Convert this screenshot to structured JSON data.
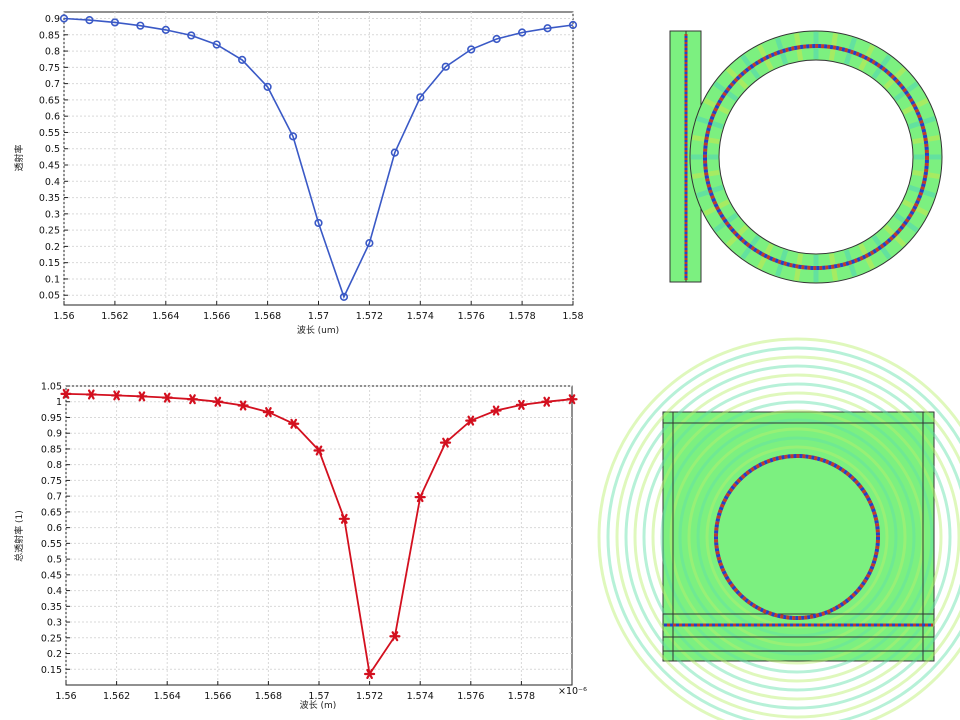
{
  "colors": {
    "series_top": "#3a59c6",
    "series_bottom": "#d3101f",
    "grid": "#d9d9d9",
    "field_bg": "#7cf080",
    "field_stroke": "#333333"
  },
  "chart_data": [
    {
      "type": "line",
      "marker": "circle",
      "xlabel": "波长 (um)",
      "ylabel": "透射率",
      "xlim": [
        1.56,
        1.58
      ],
      "ylim": [
        0.02,
        0.92
      ],
      "x_ticks": [
        "1.56",
        "1.562",
        "1.564",
        "1.566",
        "1.568",
        "1.57",
        "1.572",
        "1.574",
        "1.576",
        "1.578",
        "1.58"
      ],
      "y_ticks": [
        "0.05",
        "0.1",
        "0.15",
        "0.2",
        "0.25",
        "0.3",
        "0.35",
        "0.4",
        "0.45",
        "0.5",
        "0.55",
        "0.6",
        "0.65",
        "0.7",
        "0.75",
        "0.8",
        "0.85",
        "0.9"
      ],
      "grid": true,
      "x": [
        1.56,
        1.561,
        1.562,
        1.563,
        1.564,
        1.565,
        1.566,
        1.567,
        1.568,
        1.569,
        1.57,
        1.571,
        1.572,
        1.573,
        1.574,
        1.575,
        1.576,
        1.577,
        1.578,
        1.579,
        1.58
      ],
      "y": [
        0.9,
        0.895,
        0.888,
        0.878,
        0.865,
        0.848,
        0.82,
        0.773,
        0.69,
        0.538,
        0.272,
        0.045,
        0.21,
        0.488,
        0.658,
        0.752,
        0.805,
        0.837,
        0.857,
        0.87,
        0.88
      ]
    },
    {
      "type": "line",
      "marker": "asterisk",
      "xlabel": "波长 (m)",
      "ylabel": "总透射率 (1)",
      "x_multiplier": "×10⁻⁶",
      "xlim": [
        1.56,
        1.58
      ],
      "ylim": [
        0.1,
        1.05
      ],
      "x_ticks": [
        "1.56",
        "1.562",
        "1.564",
        "1.566",
        "1.568",
        "1.57",
        "1.572",
        "1.574",
        "1.576",
        "1.578"
      ],
      "y_ticks": [
        "0.15",
        "0.2",
        "0.25",
        "0.3",
        "0.35",
        "0.4",
        "0.45",
        "0.5",
        "0.55",
        "0.6",
        "0.65",
        "0.7",
        "0.75",
        "0.8",
        "0.85",
        "0.9",
        "0.95",
        "1",
        "1.05"
      ],
      "grid": true,
      "x": [
        1.56,
        1.561,
        1.562,
        1.563,
        1.564,
        1.565,
        1.566,
        1.567,
        1.568,
        1.569,
        1.57,
        1.571,
        1.572,
        1.573,
        1.574,
        1.575,
        1.576,
        1.577,
        1.578,
        1.579,
        1.58
      ],
      "y": [
        1.025,
        1.023,
        1.02,
        1.017,
        1.013,
        1.008,
        1.0,
        0.988,
        0.967,
        0.93,
        0.845,
        0.628,
        0.135,
        0.255,
        0.697,
        0.87,
        0.94,
        0.972,
        0.99,
        1.0,
        1.008
      ]
    }
  ]
}
